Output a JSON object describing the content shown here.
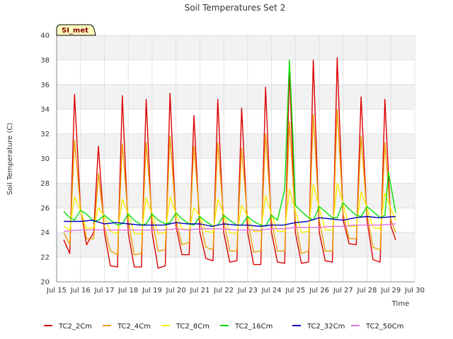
{
  "chart_data": {
    "type": "line",
    "title": "Soil Temperatures Set 2",
    "xlabel": "Time",
    "ylabel": "Soil Temperature (C)",
    "ylim": [
      20,
      40
    ],
    "yticks": [
      20,
      22,
      24,
      26,
      28,
      30,
      32,
      34,
      36,
      38,
      40
    ],
    "xlim": [
      15,
      30
    ],
    "xticks": [
      {
        "value": 15,
        "label": "Jul 15"
      },
      {
        "value": 16,
        "label": "Jul 16"
      },
      {
        "value": 17,
        "label": "Jul 17"
      },
      {
        "value": 18,
        "label": "Jul 18"
      },
      {
        "value": 19,
        "label": "Jul 19"
      },
      {
        "value": 20,
        "label": "Jul 20"
      },
      {
        "value": 21,
        "label": "Jul 21"
      },
      {
        "value": 22,
        "label": "Jul 22"
      },
      {
        "value": 23,
        "label": "Jul 23"
      },
      {
        "value": 24,
        "label": "Jul 24"
      },
      {
        "value": 25,
        "label": "Jul 25"
      },
      {
        "value": 26,
        "label": "Jul 26"
      },
      {
        "value": 27,
        "label": "Jul 27"
      },
      {
        "value": 28,
        "label": "Jul 28"
      },
      {
        "value": 29,
        "label": "Jul 29"
      },
      {
        "value": 30,
        "label": "Jul 30"
      }
    ],
    "x_unit": "day of July",
    "grid": true,
    "background_bands": true,
    "legend_position": "bottom",
    "station_badge": "SI_met",
    "series": [
      {
        "name": "TC2_2Cm",
        "color": "#dd0000",
        "x": [
          15.3,
          15.55,
          15.75,
          16.0,
          16.25,
          16.55,
          16.75,
          17.0,
          17.25,
          17.55,
          17.75,
          18.0,
          18.25,
          18.55,
          18.75,
          19.0,
          19.25,
          19.55,
          19.75,
          20.0,
          20.25,
          20.55,
          20.75,
          21.0,
          21.25,
          21.55,
          21.75,
          22.0,
          22.25,
          22.55,
          22.75,
          23.0,
          23.25,
          23.55,
          23.75,
          24.0,
          24.25,
          24.55,
          24.75,
          25.0,
          25.25,
          25.55,
          25.75,
          26.0,
          26.25,
          26.55,
          26.75,
          27.0,
          27.25,
          27.55,
          27.75,
          28.0,
          28.25,
          28.55,
          28.75,
          29.0,
          29.2
        ],
        "y": [
          23.4,
          22.3,
          35.2,
          26.0,
          23.0,
          24.0,
          31.0,
          24.0,
          21.3,
          21.2,
          35.1,
          24.0,
          21.2,
          21.2,
          34.8,
          24.0,
          21.1,
          21.3,
          35.3,
          24.5,
          22.2,
          22.2,
          33.5,
          24.0,
          21.9,
          21.7,
          34.8,
          24.0,
          21.6,
          21.7,
          34.1,
          24.0,
          21.4,
          21.4,
          35.8,
          24.0,
          21.6,
          21.5,
          37.3,
          24.0,
          21.5,
          21.6,
          38.0,
          24.0,
          21.7,
          21.6,
          38.2,
          25.0,
          23.1,
          23.0,
          35.0,
          25.0,
          21.8,
          21.6,
          34.8,
          24.5,
          23.4
        ]
      },
      {
        "name": "TC2_4Cm",
        "color": "#f0a000",
        "x": [
          15.3,
          15.55,
          15.75,
          16.0,
          16.25,
          16.55,
          16.75,
          17.0,
          17.25,
          17.55,
          17.75,
          18.0,
          18.25,
          18.55,
          18.75,
          19.0,
          19.25,
          19.55,
          19.75,
          20.0,
          20.25,
          20.55,
          20.75,
          21.0,
          21.25,
          21.55,
          21.75,
          22.0,
          22.25,
          22.55,
          22.75,
          23.0,
          23.25,
          23.55,
          23.75,
          24.0,
          24.25,
          24.55,
          24.75,
          25.0,
          25.25,
          25.55,
          25.75,
          26.0,
          26.25,
          26.55,
          26.75,
          27.0,
          27.25,
          27.55,
          27.75,
          28.0,
          28.25,
          28.55,
          28.75,
          29.0,
          29.2
        ],
        "y": [
          24.0,
          23.0,
          31.5,
          26.0,
          23.5,
          23.5,
          28.8,
          24.5,
          22.5,
          22.2,
          31.2,
          25.0,
          22.2,
          22.3,
          31.3,
          25.0,
          22.5,
          22.6,
          31.8,
          25.0,
          23.0,
          23.2,
          31.0,
          25.0,
          22.8,
          22.6,
          31.3,
          25.0,
          22.5,
          22.5,
          30.8,
          25.0,
          22.4,
          22.5,
          32.0,
          25.0,
          22.5,
          22.5,
          33.0,
          25.0,
          22.3,
          22.5,
          33.6,
          25.0,
          22.5,
          22.5,
          34.0,
          25.5,
          23.5,
          23.5,
          31.8,
          25.5,
          22.8,
          22.6,
          31.3,
          25.0,
          24.0
        ]
      },
      {
        "name": "TC2_8Cm",
        "color": "#f8f000",
        "x": [
          15.3,
          15.55,
          15.75,
          16.0,
          16.25,
          16.55,
          16.75,
          17.0,
          17.25,
          17.55,
          17.75,
          18.0,
          18.25,
          18.55,
          18.75,
          19.0,
          19.25,
          19.55,
          19.75,
          20.0,
          20.25,
          20.55,
          20.75,
          21.0,
          21.25,
          21.55,
          21.75,
          22.0,
          22.25,
          22.55,
          22.75,
          23.0,
          23.25,
          23.55,
          23.75,
          24.0,
          24.25,
          24.55,
          24.75,
          25.0,
          25.25,
          25.55,
          25.75,
          26.0,
          26.25,
          26.55,
          26.75,
          27.0,
          27.25,
          27.55,
          27.75,
          28.0,
          28.25,
          28.55,
          28.75,
          29.0,
          29.2
        ],
        "y": [
          24.5,
          24.2,
          26.9,
          25.8,
          24.3,
          24.4,
          26.0,
          25.3,
          24.1,
          23.9,
          26.7,
          25.5,
          23.9,
          23.9,
          26.8,
          25.5,
          23.9,
          24.0,
          26.9,
          25.5,
          24.3,
          24.2,
          26.0,
          25.3,
          24.1,
          24.0,
          26.7,
          25.5,
          24.0,
          23.9,
          26.2,
          25.3,
          24.1,
          24.1,
          27.0,
          25.5,
          24.1,
          24.1,
          27.5,
          25.8,
          24.0,
          24.1,
          27.9,
          26.0,
          24.2,
          24.2,
          28.0,
          26.3,
          24.5,
          24.5,
          27.3,
          26.0,
          24.4,
          24.3,
          27.2,
          25.9,
          25.0
        ]
      },
      {
        "name": "TC2_16Cm",
        "color": "#00e000",
        "x": [
          15.3,
          15.55,
          15.75,
          16.0,
          16.25,
          16.55,
          16.75,
          17.0,
          17.25,
          17.55,
          17.75,
          18.0,
          18.25,
          18.55,
          18.75,
          19.0,
          19.25,
          19.55,
          19.75,
          20.0,
          20.25,
          20.55,
          20.75,
          21.0,
          21.25,
          21.55,
          21.75,
          22.0,
          22.25,
          22.55,
          22.75,
          23.0,
          23.25,
          23.55,
          23.75,
          24.0,
          24.25,
          24.55,
          24.75,
          24.9,
          25.0,
          25.2,
          25.55,
          25.75,
          26.0,
          26.25,
          26.55,
          26.75,
          27.0,
          27.25,
          27.55,
          27.75,
          28.0,
          28.25,
          28.55,
          28.75,
          28.9,
          29.2
        ],
        "y": [
          25.7,
          25.2,
          25.0,
          25.8,
          25.5,
          24.9,
          25.0,
          25.4,
          25.0,
          24.6,
          24.7,
          25.5,
          25.0,
          24.6,
          24.7,
          25.5,
          25.0,
          24.7,
          24.8,
          25.6,
          25.1,
          24.7,
          24.6,
          25.3,
          24.9,
          24.5,
          24.6,
          25.4,
          25.0,
          24.6,
          24.6,
          25.3,
          24.9,
          24.6,
          24.5,
          25.4,
          25.0,
          27.5,
          38.0,
          31.5,
          26.2,
          25.8,
          25.2,
          25.0,
          26.1,
          25.7,
          25.2,
          25.2,
          26.4,
          25.9,
          25.4,
          25.3,
          26.1,
          25.7,
          25.2,
          25.4,
          28.9,
          25.6
        ]
      },
      {
        "name": "TC2_32Cm",
        "color": "#0000c0",
        "x": [
          15.3,
          16.0,
          16.5,
          17.0,
          17.5,
          18.0,
          18.5,
          19.0,
          19.5,
          20.0,
          20.5,
          21.0,
          21.5,
          22.0,
          22.5,
          23.0,
          23.5,
          24.0,
          24.5,
          25.0,
          25.5,
          26.0,
          26.5,
          27.0,
          27.5,
          28.0,
          28.5,
          29.2
        ],
        "y": [
          24.9,
          24.9,
          25.0,
          24.7,
          24.8,
          24.7,
          24.6,
          24.6,
          24.6,
          24.8,
          24.7,
          24.7,
          24.5,
          24.7,
          24.6,
          24.6,
          24.5,
          24.6,
          24.6,
          24.8,
          24.9,
          25.2,
          25.1,
          25.0,
          25.2,
          25.3,
          25.2,
          25.3
        ]
      },
      {
        "name": "TC2_50Cm",
        "color": "#e070e0",
        "x": [
          15.3,
          16.0,
          16.5,
          17.0,
          17.5,
          18.0,
          18.5,
          19.0,
          19.5,
          20.0,
          20.5,
          21.0,
          21.5,
          22.0,
          22.5,
          23.0,
          23.5,
          24.0,
          24.5,
          25.0,
          25.5,
          26.0,
          26.5,
          27.0,
          27.5,
          28.0,
          28.5,
          29.2
        ],
        "y": [
          24.1,
          24.2,
          24.2,
          24.2,
          24.2,
          24.2,
          24.2,
          24.2,
          24.2,
          24.3,
          24.2,
          24.3,
          24.3,
          24.3,
          24.2,
          24.2,
          24.2,
          24.3,
          24.3,
          24.4,
          24.4,
          24.4,
          24.5,
          24.5,
          24.6,
          24.6,
          24.6,
          24.7
        ]
      }
    ]
  }
}
